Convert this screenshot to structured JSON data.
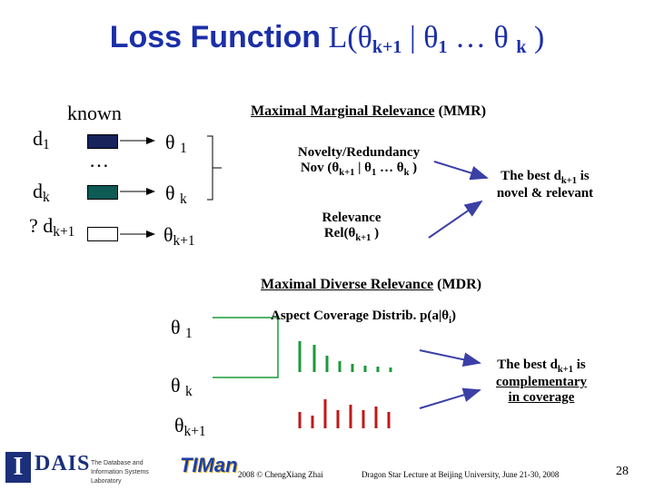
{
  "title": {
    "prefix": "Loss Function",
    "loss_open": "L(",
    "theta1": "θ",
    "sub1": "k+1",
    "bar": "|",
    "theta2": "θ",
    "sub2": "1",
    "dots": "…",
    "theta3": "θ",
    "sub3": "k",
    "close": ")"
  },
  "docs": {
    "known_label": "known",
    "d1": "d",
    "d1_sub": "1",
    "ellipsis": "…",
    "dk": "d",
    "dk_sub": "k",
    "unknown_prefix": "?",
    "dk1": "d",
    "dk1_sub": "k+1"
  },
  "thetas": {
    "t1": "θ",
    "t1_sub": "1",
    "tk": "θ",
    "tk_sub": "k",
    "tk1": "θ",
    "tk1_sub": "k+1"
  },
  "mmr": {
    "heading_underlined": "Maximal Marginal Relevance",
    "heading_tail": "(MMR)",
    "novelty_line1": "Novelty/Redundancy",
    "novelty_line2_a": "Nov (θ",
    "novelty_line2_sub1": "k+1",
    "novelty_line2_b": " | θ",
    "novelty_line2_sub2": "1",
    "novelty_line2_c": " … θ",
    "novelty_line2_sub3": "k",
    "novelty_line2_d": " )",
    "relevance_line1": "Relevance",
    "relevance_line2_a": "Rel(θ",
    "relevance_line2_sub": "k+1",
    "relevance_line2_b": " )",
    "best_line1_a": "The best d",
    "best_line1_sub": "k+1",
    "best_line1_b": " is",
    "best_line2": "novel & relevant"
  },
  "mdr": {
    "heading_underlined": "Maximal Diverse Relevance",
    "heading_tail": "(MDR)",
    "aspect_a": "Aspect Coverage Distrib.  p(a|θ",
    "aspect_sub": "i",
    "aspect_b": ")",
    "theta1": "θ",
    "theta1_sub": "1",
    "thetak": "θ",
    "thetak_sub": "k",
    "thetak1": "θ",
    "thetak1_sub": "k+1",
    "best_line1_a": "The best d",
    "best_line1_sub": "k+1",
    "best_line1_b": " is",
    "best_line2": "complementary",
    "best_line3": "in coverage"
  },
  "colors": {
    "title": "#1b2fa8",
    "green": "#1a9a3a",
    "red": "#c01818",
    "arrow": "#3b3fa6",
    "box_navy": "#17235a",
    "box_teal": "#0e5a55"
  },
  "footer": {
    "copyright": "2008 © ChengXiang Zhai",
    "lecture": "Dragon Star Lecture at Beijing University, June 21-30, 2008",
    "page_number": "28",
    "logo_text": "DAIS",
    "logo_caption": "The Database and Information Systems Laboratory",
    "logo2_text": "TIMan"
  }
}
